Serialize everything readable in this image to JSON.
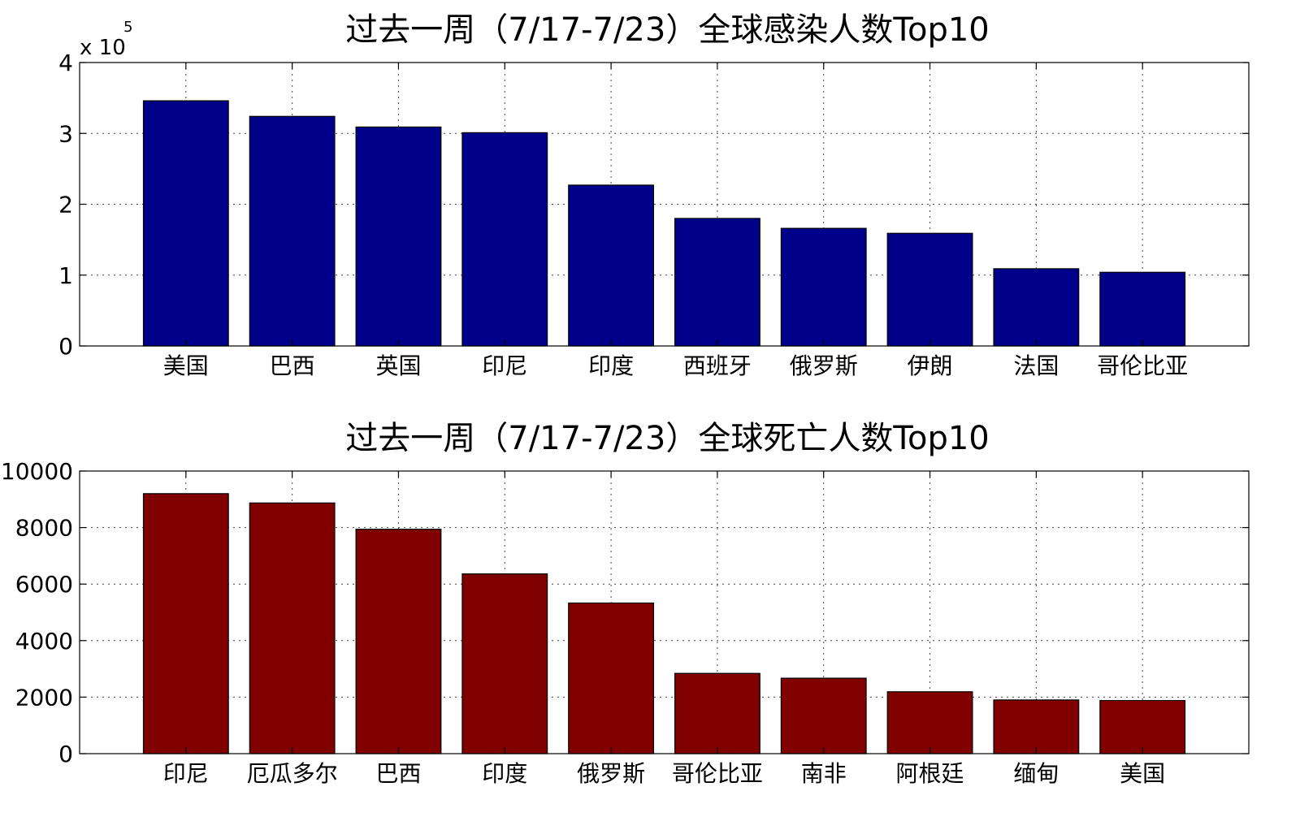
{
  "chart_data": [
    {
      "type": "bar",
      "title": "过去一周（7/17-7/23）全球感染人数Top10",
      "categories": [
        "美国",
        "巴西",
        "英国",
        "印尼",
        "印度",
        "西班牙",
        "俄罗斯",
        "伊朗",
        "法国",
        "哥伦比亚"
      ],
      "values": [
        346000,
        324000,
        309000,
        301000,
        227000,
        180000,
        166000,
        159000,
        109000,
        104000
      ],
      "ylim": [
        0,
        400000
      ],
      "yticks": [
        0,
        100000,
        200000,
        300000,
        400000
      ],
      "ytick_labels": [
        "0",
        "1",
        "2",
        "3",
        "4"
      ],
      "exponent_label": "x 10",
      "exponent_power": "5",
      "color": "#00008b",
      "grid": true,
      "xlabel": "",
      "ylabel": ""
    },
    {
      "type": "bar",
      "title": "过去一周（7/17-7/23）全球死亡人数Top10",
      "categories": [
        "印尼",
        "厄瓜多尔",
        "巴西",
        "印度",
        "俄罗斯",
        "哥伦比亚",
        "南非",
        "阿根廷",
        "缅甸",
        "美国"
      ],
      "values": [
        9200,
        8870,
        7940,
        6360,
        5330,
        2840,
        2670,
        2190,
        1900,
        1880
      ],
      "ylim": [
        0,
        10000
      ],
      "yticks": [
        0,
        2000,
        4000,
        6000,
        8000,
        10000
      ],
      "ytick_labels": [
        "0",
        "2000",
        "4000",
        "6000",
        "8000",
        "10000"
      ],
      "color": "#800000",
      "grid": true,
      "xlabel": "",
      "ylabel": ""
    }
  ]
}
